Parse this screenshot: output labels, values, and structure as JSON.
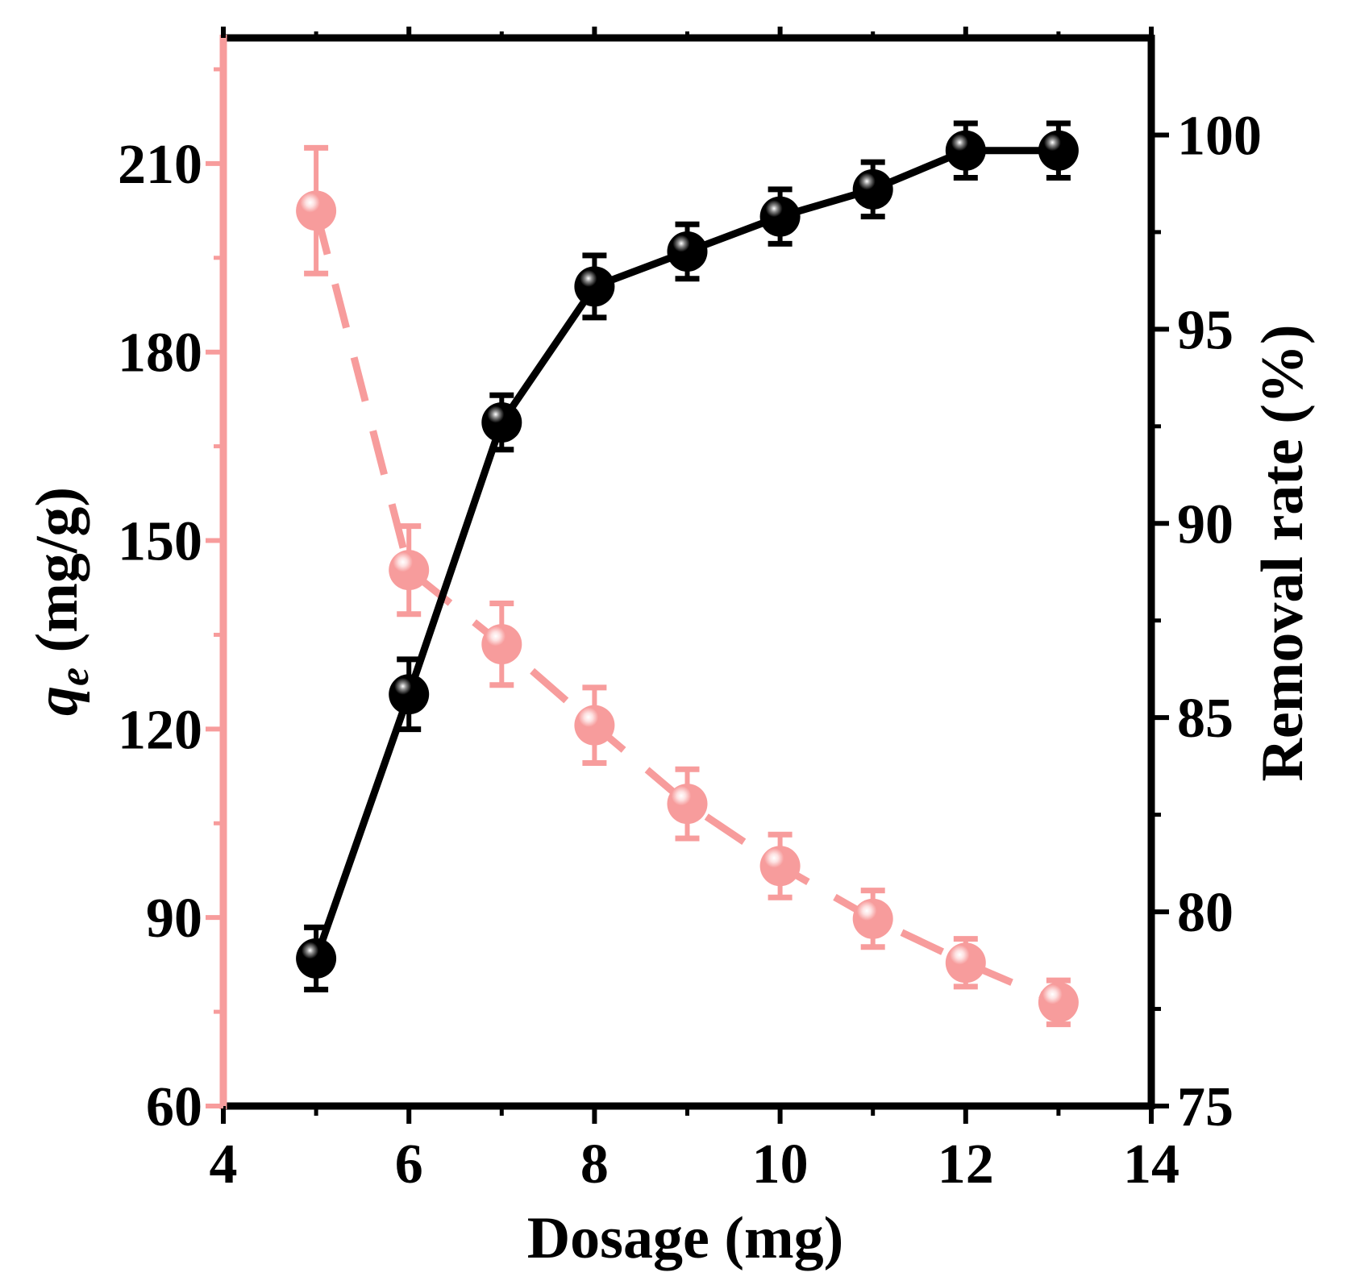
{
  "chart_data": {
    "type": "line",
    "x_axis": {
      "label": "Dosage (mg)",
      "range": [
        4,
        14
      ],
      "ticks": [
        4,
        6,
        8,
        10,
        12,
        14
      ]
    },
    "y_left": {
      "label_symbol": "q",
      "label_subscript": "e",
      "label_unit": " (mg/g)",
      "range": [
        60,
        230
      ],
      "ticks": [
        60,
        90,
        120,
        150,
        180,
        210
      ]
    },
    "y_right": {
      "label": "Removal rate (%)",
      "range": [
        75,
        102.5
      ],
      "ticks": [
        75,
        80,
        85,
        90,
        95,
        100
      ]
    },
    "series": [
      {
        "name": "qe",
        "axis": "left",
        "color": "#F79C9C",
        "line_style": "dashed",
        "x": [
          5,
          6,
          7,
          8,
          9,
          10,
          11,
          12,
          13
        ],
        "y": [
          202.5,
          145.3,
          133.5,
          120.6,
          108.1,
          98.2,
          89.8,
          82.8,
          76.5
        ],
        "err": [
          10,
          7,
          6.5,
          6,
          5.5,
          5,
          4.5,
          3.8,
          3.5
        ]
      },
      {
        "name": "Removal rate",
        "axis": "right",
        "color": "#000000",
        "line_style": "solid",
        "x": [
          5,
          6,
          7,
          8,
          9,
          10,
          11,
          12,
          13
        ],
        "y": [
          78.8,
          85.6,
          92.6,
          96.1,
          97.0,
          97.9,
          98.6,
          99.6,
          99.6
        ],
        "err": [
          0.8,
          0.9,
          0.7,
          0.8,
          0.7,
          0.7,
          0.7,
          0.7,
          0.7
        ]
      }
    ]
  }
}
